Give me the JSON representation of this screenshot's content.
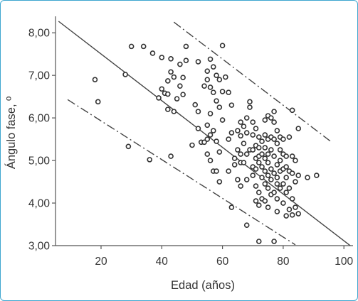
{
  "chart_data": {
    "type": "scatter",
    "title": "",
    "xlabel": "Edad (años)",
    "ylabel": "Ángulo fase, º",
    "xlim": [
      5,
      103
    ],
    "ylim": [
      3.0,
      8.32
    ],
    "xticks": [
      20,
      40,
      60,
      80,
      100
    ],
    "xtick_labels": [
      "20",
      "40",
      "60",
      "80",
      "100"
    ],
    "yticks": [
      3,
      4,
      5,
      6,
      7,
      8
    ],
    "ytick_labels": [
      "3,00",
      "4,00",
      "5,00",
      "6,00",
      "7,00",
      "8,00"
    ],
    "grid": false,
    "legend": "none",
    "colors": {
      "points": "#333333",
      "lines": "#444444",
      "frame": "#3ea6cf"
    },
    "lines": [
      {
        "role": "regression",
        "style": "solid",
        "points": [
          [
            6,
            8.27
          ],
          [
            103,
            2.95
          ]
        ]
      },
      {
        "role": "upper-limit",
        "style": "dash-dot",
        "points": [
          [
            44,
            8.25
          ],
          [
            96,
            5.43
          ]
        ]
      },
      {
        "role": "lower-limit",
        "style": "dash-dot",
        "points": [
          [
            9,
            6.43
          ],
          [
            84,
            3.02
          ]
        ]
      }
    ],
    "points": [
      [
        18,
        6.9
      ],
      [
        19,
        6.38
      ],
      [
        28,
        7.02
      ],
      [
        29,
        5.33
      ],
      [
        30,
        7.68
      ],
      [
        34,
        7.68
      ],
      [
        36,
        5.02
      ],
      [
        37,
        7.52
      ],
      [
        39,
        6.47
      ],
      [
        40,
        7.42
      ],
      [
        40,
        6.68
      ],
      [
        41,
        6.58
      ],
      [
        42,
        6.87
      ],
      [
        42,
        6.56
      ],
      [
        42,
        6.2
      ],
      [
        43,
        7.39
      ],
      [
        43,
        7.08
      ],
      [
        43,
        5.1
      ],
      [
        44,
        6.96
      ],
      [
        44,
        6.15
      ],
      [
        45,
        6.45
      ],
      [
        46,
        7.26
      ],
      [
        46,
        6.75
      ],
      [
        47,
        6.95
      ],
      [
        47,
        6.55
      ],
      [
        48,
        7.68
      ],
      [
        48,
        7.35
      ],
      [
        50,
        5.36
      ],
      [
        51,
        6.31
      ],
      [
        52,
        7.32
      ],
      [
        52,
        6.15
      ],
      [
        52,
        5.75
      ],
      [
        53,
        5.43
      ],
      [
        54,
        6.75
      ],
      [
        54,
        5.43
      ],
      [
        55,
        7.1
      ],
      [
        55,
        6.9
      ],
      [
        55,
        5.83
      ],
      [
        55,
        5.5
      ],
      [
        55,
        5.15
      ],
      [
        56,
        7.38
      ],
      [
        56,
        6.72
      ],
      [
        56,
        6.1
      ],
      [
        56,
        5.6
      ],
      [
        56,
        5.0
      ],
      [
        57,
        7.2
      ],
      [
        57,
        6.6
      ],
      [
        57,
        5.7
      ],
      [
        57,
        4.75
      ],
      [
        58,
        7.0
      ],
      [
        58,
        6.4
      ],
      [
        58,
        5.45
      ],
      [
        58,
        4.75
      ],
      [
        59,
        6.9
      ],
      [
        59,
        6.25
      ],
      [
        59,
        5.2
      ],
      [
        59,
        4.5
      ],
      [
        60,
        7.7
      ],
      [
        60,
        6.62
      ],
      [
        60,
        5.95
      ],
      [
        61,
        6.96
      ],
      [
        62,
        6.6
      ],
      [
        62,
        5.5
      ],
      [
        62,
        4.75
      ],
      [
        63,
        6.3
      ],
      [
        63,
        5.65
      ],
      [
        63,
        3.9
      ],
      [
        64,
        5.05
      ],
      [
        64,
        4.9
      ],
      [
        65,
        5.7
      ],
      [
        65,
        5.25
      ],
      [
        65,
        4.55
      ],
      [
        66,
        5.9
      ],
      [
        66,
        5.58
      ],
      [
        66,
        5.15
      ],
      [
        66,
        4.95
      ],
      [
        66,
        4.4
      ],
      [
        67,
        5.8
      ],
      [
        67,
        5.4
      ],
      [
        67,
        4.95
      ],
      [
        68,
        6.0
      ],
      [
        68,
        5.65
      ],
      [
        68,
        5.15
      ],
      [
        68,
        4.55
      ],
      [
        68,
        3.48
      ],
      [
        69,
        6.38
      ],
      [
        69,
        6.25
      ],
      [
        69,
        5.25
      ],
      [
        70,
        5.9
      ],
      [
        70,
        5.6
      ],
      [
        70,
        5.25
      ],
      [
        70,
        4.85
      ],
      [
        70,
        4.65
      ],
      [
        71,
        5.75
      ],
      [
        71,
        5.35
      ],
      [
        71,
        5.05
      ],
      [
        71,
        4.8
      ],
      [
        71,
        4.4
      ],
      [
        71,
        4.05
      ],
      [
        72,
        5.55
      ],
      [
        72,
        5.3
      ],
      [
        72,
        5.1
      ],
      [
        72,
        4.95
      ],
      [
        72,
        4.25
      ],
      [
        72,
        3.95
      ],
      [
        72,
        3.1
      ],
      [
        73,
        5.45
      ],
      [
        73,
        5.15
      ],
      [
        73,
        4.85
      ],
      [
        73,
        4.6
      ],
      [
        73,
        4.1
      ],
      [
        74,
        5.95
      ],
      [
        74,
        5.6
      ],
      [
        74,
        5.3
      ],
      [
        74,
        5.05
      ],
      [
        74,
        4.75
      ],
      [
        74,
        4.45
      ],
      [
        74,
        4.05
      ],
      [
        75,
        6.05
      ],
      [
        75,
        5.5
      ],
      [
        75,
        5.15
      ],
      [
        75,
        4.95
      ],
      [
        75,
        4.65
      ],
      [
        75,
        4.35
      ],
      [
        75,
        3.9
      ],
      [
        76,
        6.0
      ],
      [
        76,
        5.55
      ],
      [
        76,
        5.25
      ],
      [
        76,
        4.8
      ],
      [
        76,
        4.55
      ],
      [
        76,
        4.2
      ],
      [
        77,
        6.15
      ],
      [
        77,
        5.9
      ],
      [
        77,
        5.5
      ],
      [
        77,
        5.1
      ],
      [
        77,
        4.7
      ],
      [
        77,
        4.25
      ],
      [
        77,
        3.1
      ],
      [
        78,
        5.7
      ],
      [
        78,
        5.4
      ],
      [
        78,
        4.9
      ],
      [
        78,
        4.6
      ],
      [
        78,
        4.45
      ],
      [
        78,
        4.1
      ],
      [
        78,
        3.8
      ],
      [
        79,
        5.55
      ],
      [
        79,
        5.25
      ],
      [
        79,
        5.0
      ],
      [
        79,
        4.75
      ],
      [
        79,
        4.35
      ],
      [
        80,
        5.5
      ],
      [
        80,
        5.15
      ],
      [
        80,
        4.8
      ],
      [
        80,
        4.45
      ],
      [
        80,
        4.0
      ],
      [
        81,
        5.1
      ],
      [
        81,
        4.85
      ],
      [
        81,
        4.6
      ],
      [
        81,
        4.25
      ],
      [
        81,
        3.7
      ],
      [
        82,
        5.55
      ],
      [
        82,
        4.75
      ],
      [
        82,
        4.35
      ],
      [
        82,
        3.85
      ],
      [
        83,
        6.18
      ],
      [
        83,
        5.1
      ],
      [
        83,
        4.7
      ],
      [
        83,
        4.1
      ],
      [
        83,
        3.72
      ],
      [
        84,
        5.0
      ],
      [
        84,
        4.5
      ],
      [
        84,
        3.9
      ],
      [
        85,
        5.75
      ],
      [
        85,
        4.65
      ],
      [
        85,
        3.75
      ],
      [
        88,
        4.6
      ],
      [
        91,
        4.65
      ]
    ]
  }
}
